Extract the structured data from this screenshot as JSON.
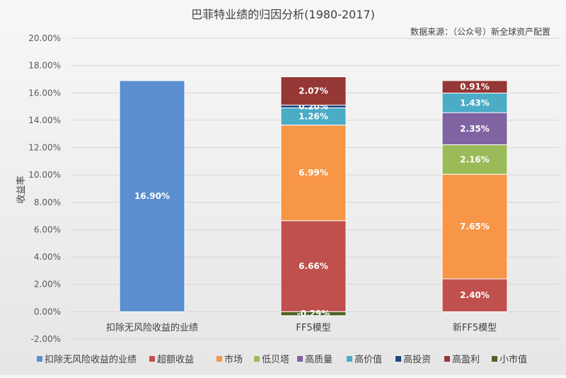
{
  "chart_data": {
    "type": "bar",
    "stacked": true,
    "title": "巴菲特业绩的归因分析(1980-2017)",
    "subtitle": "数据来源：（公众号）新全球资产配置",
    "ylabel": "收益率",
    "ylim": [
      -0.02,
      0.2
    ],
    "yticks": [
      -0.02,
      0.0,
      0.02,
      0.04,
      0.06,
      0.08,
      0.1,
      0.12,
      0.14,
      0.16,
      0.18,
      0.2
    ],
    "ytick_labels": [
      "-2.00%",
      "0.00%",
      "2.00%",
      "4.00%",
      "6.00%",
      "8.00%",
      "10.00%",
      "12.00%",
      "14.00%",
      "16.00%",
      "18.00%",
      "20.00%"
    ],
    "grid": true,
    "legend_position": "bottom",
    "categories": [
      "扣除无风险收益的业绩",
      "FF5模型",
      "新FF5模型"
    ],
    "series": [
      {
        "name": "扣除无风险收益的业绩",
        "color": "#5b8fcf",
        "values": [
          0.169,
          null,
          null
        ],
        "labels": [
          "16.90%",
          "",
          ""
        ]
      },
      {
        "name": "超额收益",
        "color": "#c0504d",
        "values": [
          null,
          0.0666,
          0.024
        ],
        "labels": [
          "",
          "6.66%",
          "2.40%"
        ]
      },
      {
        "name": "市场",
        "color": "#f79646",
        "values": [
          null,
          0.0699,
          0.0765
        ],
        "labels": [
          "",
          "6.99%",
          "7.65%"
        ]
      },
      {
        "name": "低贝塔",
        "color": "#9bbb59",
        "values": [
          null,
          null,
          0.0216
        ],
        "labels": [
          "",
          "",
          "2.16%"
        ]
      },
      {
        "name": "高质量",
        "color": "#8064a2",
        "values": [
          null,
          null,
          0.0235
        ],
        "labels": [
          "",
          "",
          "2.35%"
        ]
      },
      {
        "name": "高价值",
        "color": "#4bacc6",
        "values": [
          null,
          0.0126,
          0.0143
        ],
        "labels": [
          "",
          "1.26%",
          "1.43%"
        ]
      },
      {
        "name": "高投资",
        "color": "#1f497d",
        "values": [
          null,
          0.002,
          null
        ],
        "labels": [
          "",
          "0.20%",
          ""
        ]
      },
      {
        "name": "高盈利",
        "color": "#953735",
        "values": [
          null,
          0.0207,
          0.0091
        ],
        "labels": [
          "",
          "2.07%",
          "0.91%"
        ]
      },
      {
        "name": "小市值",
        "color": "#4f6228",
        "values": [
          null,
          -0.0029,
          null
        ],
        "labels": [
          "",
          "-0.29%",
          ""
        ]
      }
    ]
  }
}
